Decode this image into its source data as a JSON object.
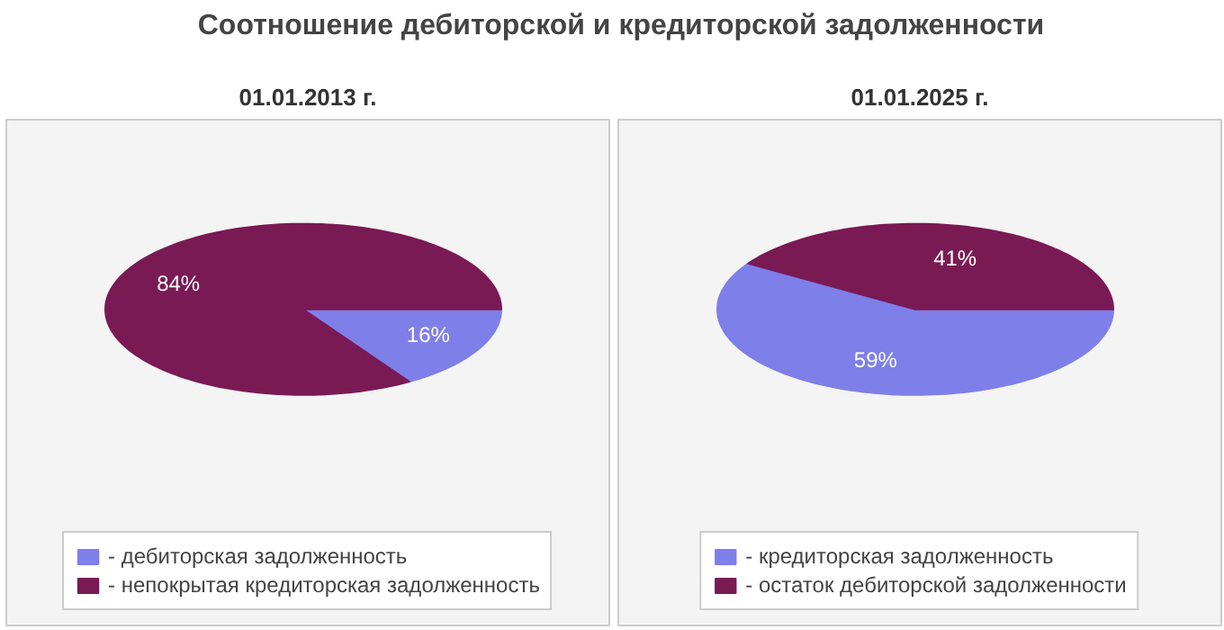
{
  "chart_data": [
    {
      "type": "pie",
      "title": "Соотношение дебиторской и кредиторской задолженности",
      "subtitle": "01.01.2013 г.",
      "categories": [
        "- дебиторская задолженность",
        "- непокрытая кредиторская задолженность"
      ],
      "values": [
        16,
        84
      ],
      "colors": [
        "#7f7fea",
        "#7a1a55"
      ],
      "value_labels": [
        "16%",
        "84%"
      ],
      "legend": "bottom"
    },
    {
      "type": "pie",
      "subtitle": "01.01.2025 г.",
      "categories": [
        "- кредиторская задолженность",
        "- остаток дебиторской задолженности"
      ],
      "values": [
        59,
        41
      ],
      "colors": [
        "#7f7fea",
        "#7a1a55"
      ],
      "value_labels": [
        "59%",
        "41%"
      ],
      "legend": "bottom"
    }
  ]
}
